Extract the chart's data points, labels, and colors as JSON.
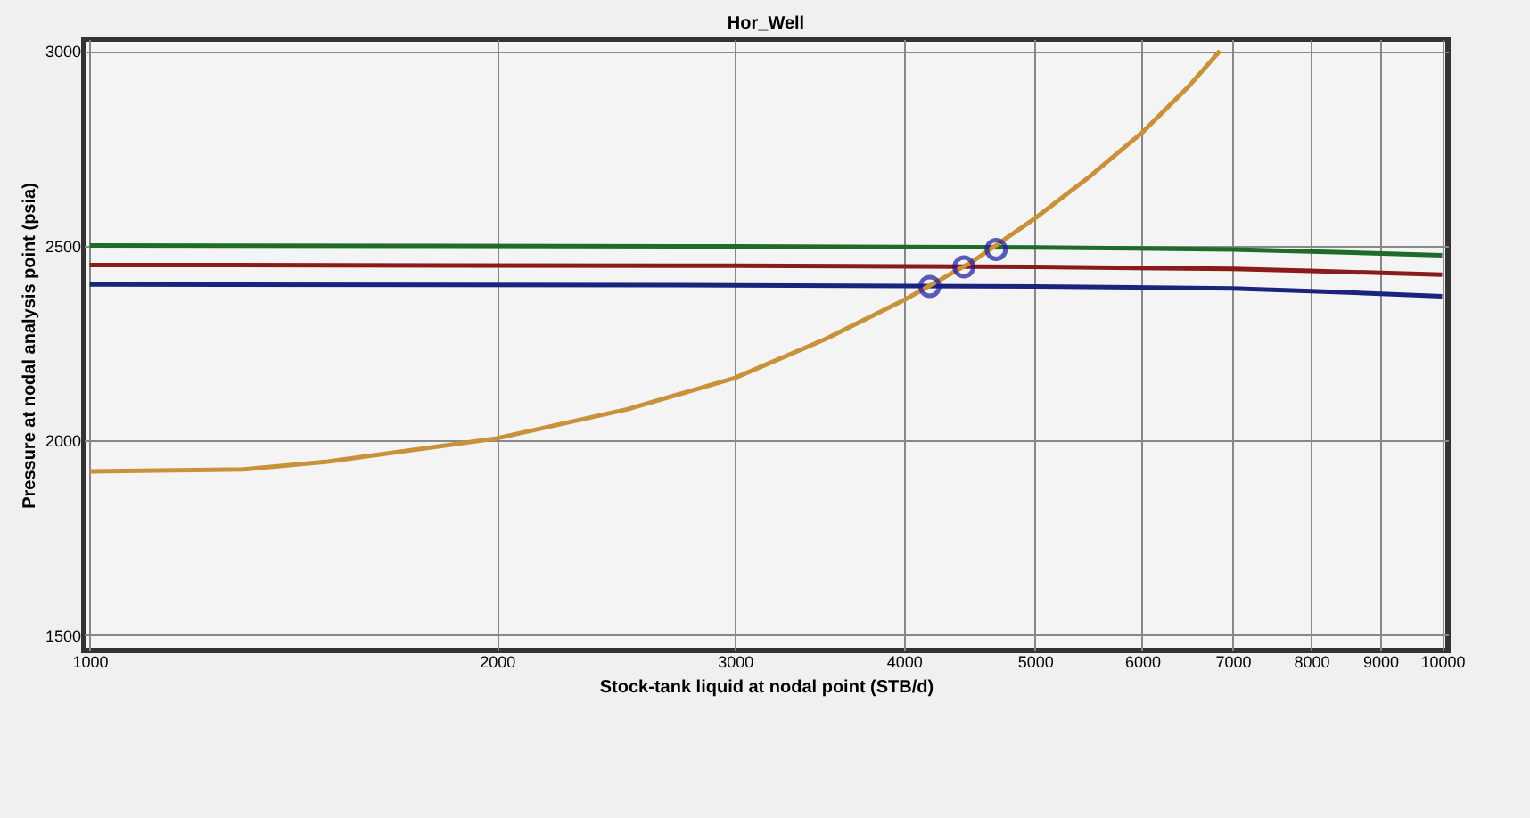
{
  "chart_data": {
    "type": "line",
    "title": "Hor_Well",
    "xlabel": "Stock-tank liquid at nodal point (STB/d)",
    "ylabel": "Pressure at nodal analysis point (psia)",
    "log": "x",
    "xlim": [
      990,
      10100
    ],
    "xticks": [
      1000,
      2000,
      3000,
      4000,
      5000,
      6000,
      7000,
      8000,
      9000,
      10000
    ],
    "ylim": [
      1460,
      3030
    ],
    "yticks": [
      1500,
      2000,
      2500,
      3000
    ],
    "grid": true,
    "marker": "none",
    "line_style": "solid",
    "series": [
      {
        "color": "#1e6b2a",
        "x": [
          1000,
          3000,
          5000,
          7000,
          8000,
          10000
        ],
        "values": [
          2500,
          2498,
          2495,
          2490,
          2485,
          2475
        ]
      },
      {
        "color": "#8b1a1a",
        "x": [
          1000,
          3000,
          5000,
          7000,
          8000,
          10000
        ],
        "values": [
          2450,
          2448,
          2445,
          2440,
          2435,
          2425
        ]
      },
      {
        "color": "#1a237e",
        "x": [
          1000,
          3000,
          5000,
          7000,
          8000,
          10000
        ],
        "values": [
          2400,
          2398,
          2395,
          2390,
          2383,
          2370
        ]
      },
      {
        "color": "#c8913a",
        "x": [
          1000,
          1300,
          1500,
          2000,
          2500,
          3000,
          3500,
          4000,
          4500,
          5000,
          5500,
          6000,
          6500,
          6850
        ],
        "values": [
          1920,
          1925,
          1945,
          2005,
          2080,
          2160,
          2260,
          2360,
          2460,
          2570,
          2680,
          2790,
          2910,
          3000
        ]
      },
      {
        "type": "scatter",
        "marker": "circle",
        "color": "#1a1aa0",
        "x": [
          4180,
          4430,
          4680
        ],
        "values": [
          2395,
          2445,
          2490
        ]
      }
    ]
  }
}
